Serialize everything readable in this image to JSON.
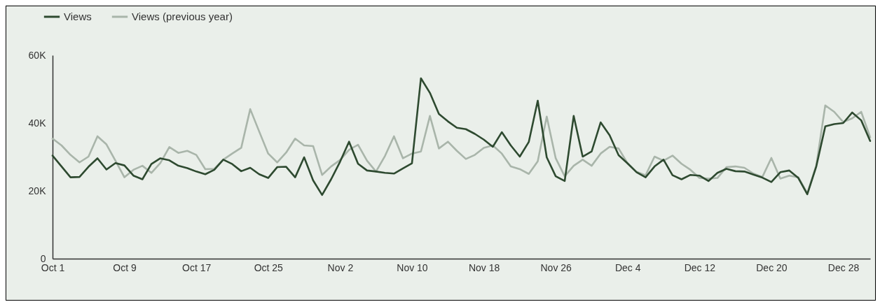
{
  "chart_data": {
    "type": "line",
    "x": [
      "--10-01",
      "--10-02",
      "--10-03",
      "--10-04",
      "--10-05",
      "--10-06",
      "--10-07",
      "--10-08",
      "--10-09",
      "--10-10",
      "--10-11",
      "--10-12",
      "--10-13",
      "--10-14",
      "--10-15",
      "--10-16",
      "--10-17",
      "--10-18",
      "--10-19",
      "--10-20",
      "--10-21",
      "--10-22",
      "--10-23",
      "--10-24",
      "--10-25",
      "--10-26",
      "--10-27",
      "--10-28",
      "--10-29",
      "--10-30",
      "--10-31",
      "--11-01",
      "--11-02",
      "--11-03",
      "--11-04",
      "--11-05",
      "--11-06",
      "--11-07",
      "--11-08",
      "--11-09",
      "--11-10",
      "--11-11",
      "--11-12",
      "--11-13",
      "--11-14",
      "--11-15",
      "--11-16",
      "--11-17",
      "--11-18",
      "--11-19",
      "--11-20",
      "--11-21",
      "--11-22",
      "--11-23",
      "--11-24",
      "--11-25",
      "--11-26",
      "--11-27",
      "--11-28",
      "--11-29",
      "--11-30",
      "--12-01",
      "--12-02",
      "--12-03",
      "--12-04",
      "--12-05",
      "--12-06",
      "--12-07",
      "--12-08",
      "--12-09",
      "--12-10",
      "--12-11",
      "--12-12",
      "--12-13",
      "--12-14",
      "--12-15",
      "--12-16",
      "--12-17",
      "--12-18",
      "--12-19",
      "--12-20",
      "--12-21",
      "--12-22",
      "--12-23",
      "--12-24",
      "--12-25",
      "--12-26",
      "--12-27",
      "--12-28",
      "--12-29",
      "--12-30",
      "--12-31"
    ],
    "series": [
      {
        "name": "Views (previous year)",
        "color": "#a9b5aa",
        "values": [
          35400,
          33400,
          30600,
          28400,
          30100,
          36100,
          33700,
          28900,
          24000,
          26200,
          27400,
          25300,
          28200,
          32900,
          31200,
          31800,
          30600,
          26400,
          26500,
          29200,
          31000,
          32700,
          44100,
          37500,
          31000,
          28400,
          31300,
          35400,
          33400,
          33200,
          24700,
          27200,
          29100,
          32100,
          33600,
          28900,
          25700,
          30300,
          36100,
          29600,
          31000,
          31600,
          42100,
          32500,
          34500,
          31800,
          29400,
          30600,
          32700,
          33400,
          31000,
          27200,
          26400,
          25000,
          28700,
          41900,
          29600,
          24300,
          27400,
          29200,
          27400,
          31000,
          33000,
          32500,
          28100,
          25600,
          24600,
          30100,
          28900,
          30400,
          28000,
          26200,
          23800,
          23600,
          23800,
          27000,
          27200,
          26800,
          25100,
          24100,
          29700,
          23600,
          24500,
          24000,
          19300,
          27500,
          45200,
          43300,
          40300,
          41400,
          43300,
          35800
        ]
      },
      {
        "name": "Views",
        "color": "#2e4a30",
        "values": [
          30400,
          27200,
          24000,
          24100,
          27100,
          29600,
          26300,
          28200,
          27500,
          24500,
          23400,
          27900,
          29600,
          29000,
          27400,
          26700,
          25700,
          24900,
          26200,
          29200,
          27900,
          25800,
          26800,
          24900,
          23800,
          27000,
          27100,
          24000,
          29900,
          23100,
          18800,
          23400,
          28600,
          34500,
          28000,
          26000,
          25700,
          25300,
          25100,
          26600,
          28100,
          53200,
          48900,
          42700,
          40500,
          38600,
          38200,
          36800,
          35100,
          33000,
          37300,
          33400,
          30100,
          34400,
          46600,
          29900,
          24300,
          22900,
          42100,
          30100,
          31600,
          40200,
          36400,
          30500,
          28100,
          25500,
          24000,
          27200,
          29200,
          24600,
          23400,
          24700,
          24500,
          22900,
          25300,
          26500,
          25800,
          25700,
          24800,
          23900,
          22600,
          25500,
          26000,
          23800,
          19000,
          27200,
          39000,
          39700,
          40000,
          43100,
          40800,
          34700
        ]
      }
    ],
    "xlim": [
      "--10-01",
      "--12-31"
    ],
    "xticks": [
      {
        "value": "--10-01",
        "label": "Oct 1"
      },
      {
        "value": "--10-09",
        "label": "Oct 9"
      },
      {
        "value": "--10-17",
        "label": "Oct 17"
      },
      {
        "value": "--10-25",
        "label": "Oct 25"
      },
      {
        "value": "--11-02",
        "label": "Nov 2"
      },
      {
        "value": "--11-10",
        "label": "Nov 10"
      },
      {
        "value": "--11-18",
        "label": "Nov 18"
      },
      {
        "value": "--11-26",
        "label": "Nov 26"
      },
      {
        "value": "--12-04",
        "label": "Dec 4"
      },
      {
        "value": "--12-12",
        "label": "Dec 12"
      },
      {
        "value": "--12-20",
        "label": "Dec 20"
      },
      {
        "value": "--12-28",
        "label": "Dec 28"
      }
    ],
    "ylim": [
      0,
      60000
    ],
    "yticks": [
      0,
      {
        "value": 20000,
        "label": "20K"
      },
      {
        "value": 40000,
        "label": "40K"
      },
      {
        "value": 60000,
        "label": "60K"
      }
    ],
    "legend": "top left",
    "grid": false
  }
}
